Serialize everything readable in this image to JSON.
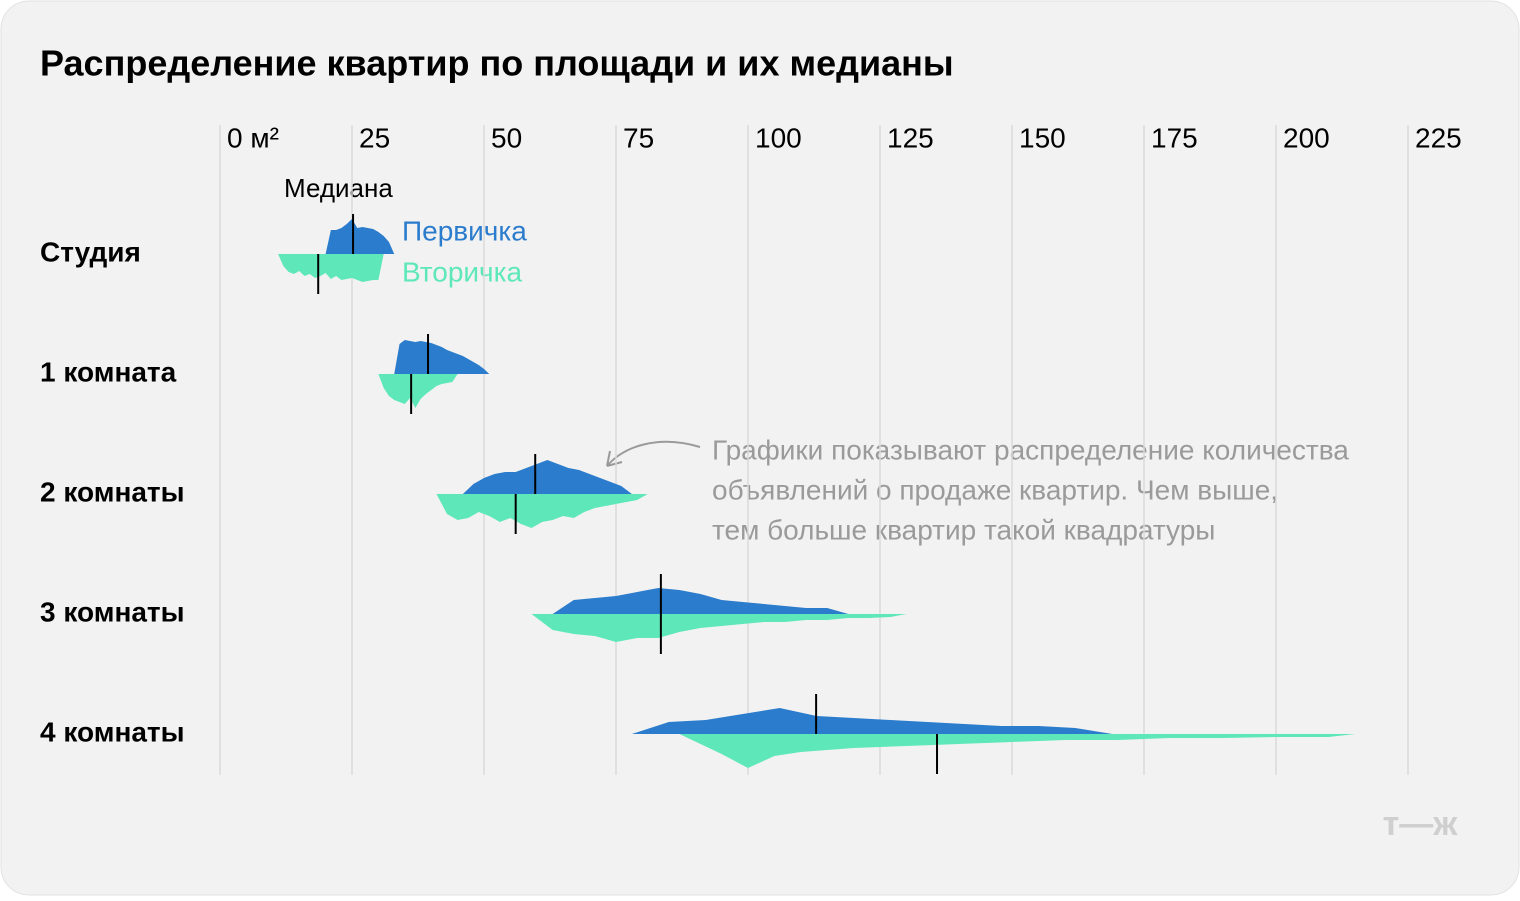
{
  "chart_data": {
    "type": "ridgeline",
    "title": "Распределение квартир по площади и их медианы",
    "xlim": [
      0,
      225
    ],
    "xticks": [
      {
        "value": 0,
        "label": "0 м²"
      },
      25,
      50,
      75,
      100,
      125,
      150,
      175,
      200,
      225
    ],
    "grid": true,
    "median_label": "Медиана",
    "series": [
      {
        "name": "Первичка",
        "color": "#2b7ccc"
      },
      {
        "name": "Вторичка",
        "color": "#5ee8b9"
      }
    ],
    "rows": [
      {
        "category": "Студия",
        "distributions": [
          {
            "x": [
              20,
              21,
              22,
              23,
              24,
              25,
              26,
              27,
              28,
              29,
              30,
              31,
              32,
              33
            ],
            "values": [
              0,
              24,
              24,
              26,
              30,
              35,
              26,
              27,
              26,
              25,
              22,
              18,
              12,
              0
            ],
            "median": 25.2
          },
          {
            "x": [
              11,
              12,
              13,
              14,
              15,
              16,
              17,
              18,
              19,
              20,
              21,
              22,
              23,
              24,
              25,
              26,
              27,
              28,
              29,
              30,
              31
            ],
            "values": [
              0,
              12,
              18,
              20,
              17,
              22,
              20,
              24,
              22,
              19,
              25,
              22,
              26,
              25,
              24,
              26,
              28,
              27,
              26,
              26,
              0
            ],
            "median": 18.6
          }
        ]
      },
      {
        "category": "1 комната",
        "distributions": [
          {
            "x": [
              33,
              34,
              35,
              36,
              37,
              38,
              39,
              40,
              41,
              42,
              43,
              44,
              45,
              46,
              47,
              48,
              49,
              50,
              51
            ],
            "values": [
              0,
              30,
              34,
              33,
              32,
              33,
              32,
              31,
              29,
              27,
              24,
              22,
              20,
              18,
              15,
              12,
              9,
              5,
              0
            ],
            "median": 39.4
          },
          {
            "x": [
              30,
              31,
              32,
              33,
              34,
              35,
              36,
              37,
              38,
              39,
              40,
              41,
              42,
              43,
              44,
              45
            ],
            "values": [
              0,
              14,
              22,
              26,
              28,
              30,
              24,
              34,
              25,
              20,
              16,
              12,
              10,
              9,
              8,
              0
            ],
            "median": 36.2
          }
        ]
      },
      {
        "category": "2 комнаты",
        "distributions": [
          {
            "x": [
              46,
              48,
              50,
              52,
              54,
              56,
              58,
              60,
              62,
              64,
              66,
              68,
              70,
              72,
              74,
              76,
              78
            ],
            "values": [
              0,
              10,
              16,
              20,
              22,
              22,
              26,
              30,
              34,
              30,
              26,
              24,
              20,
              16,
              12,
              8,
              0
            ],
            "median": 59.7
          },
          {
            "x": [
              41,
              43,
              45,
              47,
              49,
              51,
              53,
              55,
              57,
              59,
              61,
              63,
              65,
              67,
              69,
              71,
              73,
              75,
              77,
              79,
              81
            ],
            "values": [
              0,
              20,
              26,
              24,
              18,
              22,
              28,
              24,
              30,
              34,
              28,
              26,
              22,
              24,
              18,
              14,
              12,
              10,
              8,
              6,
              0
            ],
            "median": 56
          }
        ]
      },
      {
        "category": "3 комнаты",
        "distributions": [
          {
            "x": [
              63,
              67,
              71,
              75,
              79,
              83,
              87,
              91,
              95,
              99,
              103,
              107,
              111,
              115,
              119
            ],
            "values": [
              0,
              14,
              16,
              18,
              22,
              26,
              24,
              20,
              14,
              12,
              10,
              8,
              6,
              6,
              0
            ],
            "median": 83.5
          },
          {
            "x": [
              59,
              63,
              67,
              71,
              75,
              79,
              83,
              87,
              91,
              95,
              99,
              103,
              107,
              111,
              115,
              119,
              123,
              127,
              130
            ],
            "values": [
              0,
              16,
              20,
              22,
              28,
              24,
              24,
              18,
              14,
              12,
              10,
              8,
              8,
              6,
              6,
              4,
              4,
              3,
              0
            ],
            "median": 83.5
          }
        ]
      },
      {
        "category": "4 комнаты",
        "distributions": [
          {
            "x": [
              78,
              85,
              92,
              99,
              106,
              113,
              120,
              127,
              134,
              141,
              148,
              155,
              162,
              169
            ],
            "values": [
              0,
              12,
              14,
              20,
              26,
              18,
              16,
              14,
              12,
              10,
              8,
              8,
              6,
              0
            ],
            "median": 112.9
          },
          {
            "x": [
              87,
              95,
              100,
              105,
              110,
              115,
              120,
              130,
              140,
              150,
              160,
              170,
              180,
              190,
              200,
              210,
              215
            ],
            "values": [
              0,
              20,
              34,
              22,
              18,
              16,
              14,
              12,
              10,
              8,
              6,
              6,
              4,
              4,
              3,
              3,
              0
            ],
            "median": 135.8
          }
        ]
      }
    ],
    "annotation": [
      "Графики показывают распределение количества",
      "объявлений о продаже квартир. Чем выше,",
      "тем больше квартир такой квадратуры"
    ],
    "logo": "т—ж"
  }
}
